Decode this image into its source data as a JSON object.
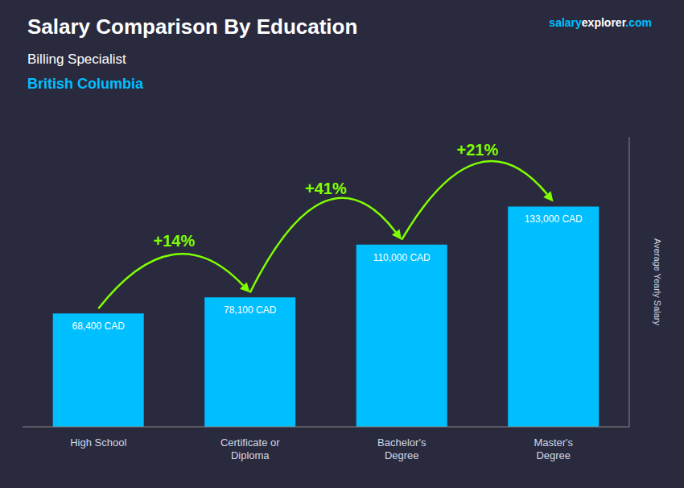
{
  "chart_data": {
    "type": "bar",
    "title": "Salary Comparison By Education",
    "subtitle": [
      {
        "text": "Billing Specialist",
        "color": "#FFFFFF"
      },
      {
        "text": "British Columbia",
        "color": "#00BFFF"
      }
    ],
    "brand": [
      {
        "text": "salary",
        "color": "#00BFFF"
      },
      {
        "text": "explorer",
        "color": "#FFFFFF"
      },
      {
        "text": ".com",
        "color": "#00BFFF"
      }
    ],
    "y_label": "Average Yearly Salary",
    "categories": [
      "High School",
      "Certificate or\nDiploma",
      "Bachelor's\nDegree",
      "Master's\nDegree"
    ],
    "values": [
      68400,
      78100,
      110000,
      133000
    ],
    "value_labels": [
      "68,400 CAD",
      "78,100 CAD",
      "110,000 CAD",
      "133,000 CAD"
    ],
    "color": "#00BFFF",
    "ylim": [
      0,
      175000
    ],
    "data_labels": true,
    "tick_labels": "x",
    "grid": false,
    "annotations": [
      {
        "text": "+14%",
        "color": "#7FFF00"
      },
      {
        "text": "+41%",
        "color": "#7FFF00"
      },
      {
        "text": "+21%",
        "color": "#7FFF00"
      }
    ],
    "background": "#2a2a3e"
  }
}
